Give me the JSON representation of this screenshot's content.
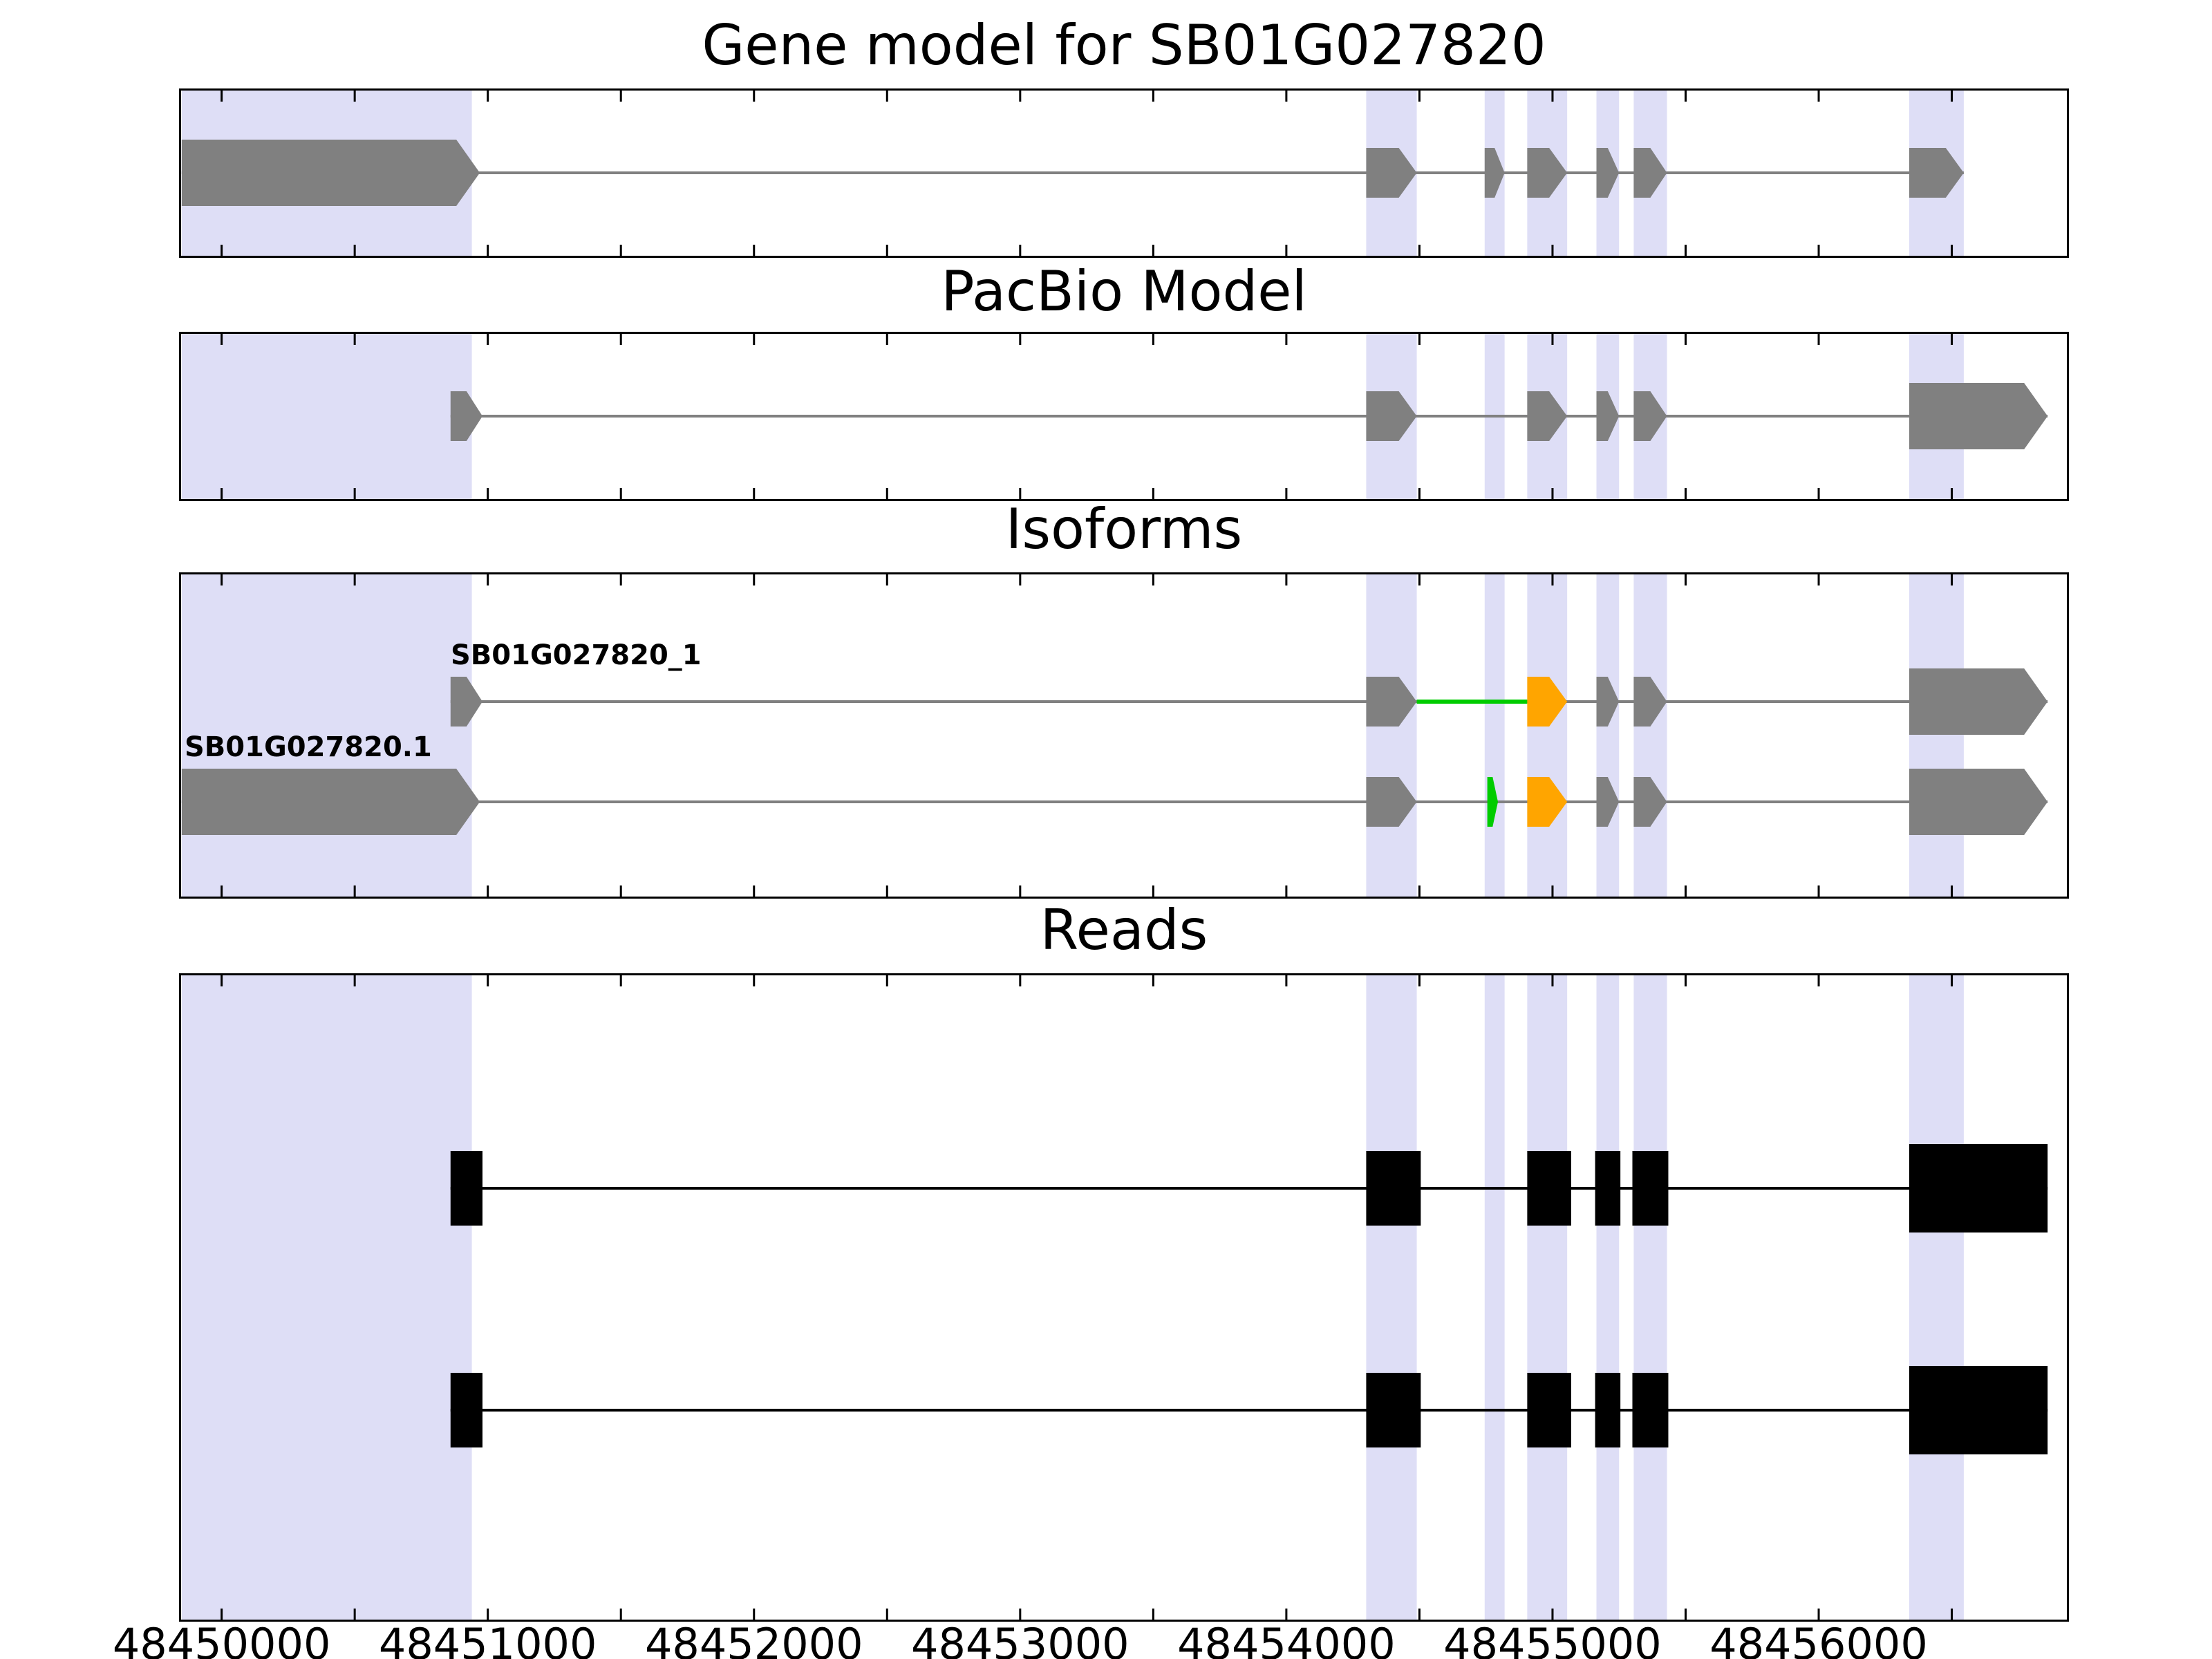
{
  "figure": {
    "background": "#ffffff",
    "axis_color": "#000000",
    "highlight_color": "#dedef6"
  },
  "chart_data": {
    "type": "genome-tracks",
    "locus": "SB01G027820",
    "x_axis": {
      "min": 48449840,
      "max": 48456940,
      "major_tick_step": 1000,
      "minor_tick_step": 500,
      "major_ticks": [
        48450000,
        48451000,
        48452000,
        48453000,
        48454000,
        48455000,
        48456000
      ],
      "tick_labels": [
        "48450000",
        "48451000",
        "48452000",
        "48453000",
        "48454000",
        "48455000",
        "48456000"
      ]
    },
    "highlight_regions": [
      {
        "start": 48449850,
        "end": 48450940
      },
      {
        "start": 48454300,
        "end": 48454490
      },
      {
        "start": 48454745,
        "end": 48454820
      },
      {
        "start": 48454905,
        "end": 48455055
      },
      {
        "start": 48455165,
        "end": 48455250
      },
      {
        "start": 48455305,
        "end": 48455430
      },
      {
        "start": 48456340,
        "end": 48456545
      }
    ],
    "panels": [
      {
        "key": "gene_model",
        "title": "Gene model for SB01G027820",
        "tracks": [
          {
            "label": "",
            "line": {
              "start": 48449850,
              "end": 48456545,
              "color": "#808080"
            },
            "extra_lines": [],
            "exons": [
              {
                "start": 48449850,
                "end": 48450970,
                "color": "#808080",
                "size": "lg",
                "tip": true
              },
              {
                "start": 48454300,
                "end": 48454490,
                "color": "#808080",
                "size": "md",
                "tip": true
              },
              {
                "start": 48454745,
                "end": 48454820,
                "color": "#808080",
                "size": "md",
                "tip": true
              },
              {
                "start": 48454905,
                "end": 48455055,
                "color": "#808080",
                "size": "md",
                "tip": true
              },
              {
                "start": 48455165,
                "end": 48455250,
                "color": "#808080",
                "size": "md",
                "tip": true
              },
              {
                "start": 48455305,
                "end": 48455430,
                "color": "#808080",
                "size": "md",
                "tip": true
              },
              {
                "start": 48456340,
                "end": 48456545,
                "color": "#808080",
                "size": "md",
                "tip": true
              }
            ]
          }
        ]
      },
      {
        "key": "pacbio_model",
        "title": "PacBio Model",
        "tracks": [
          {
            "label": "",
            "line": {
              "start": 48450860,
              "end": 48456860,
              "color": "#808080"
            },
            "extra_lines": [],
            "exons": [
              {
                "start": 48450860,
                "end": 48450980,
                "color": "#808080",
                "size": "md",
                "tip": true
              },
              {
                "start": 48454300,
                "end": 48454490,
                "color": "#808080",
                "size": "md",
                "tip": true
              },
              {
                "start": 48454905,
                "end": 48455055,
                "color": "#808080",
                "size": "md",
                "tip": true
              },
              {
                "start": 48455165,
                "end": 48455250,
                "color": "#808080",
                "size": "md",
                "tip": true
              },
              {
                "start": 48455305,
                "end": 48455430,
                "color": "#808080",
                "size": "md",
                "tip": true
              },
              {
                "start": 48456340,
                "end": 48456860,
                "color": "#808080",
                "size": "lg",
                "tip": true
              }
            ]
          }
        ]
      },
      {
        "key": "isoforms",
        "title": "Isoforms",
        "tracks": [
          {
            "label": "SB01G027820_1",
            "line": {
              "start": 48450860,
              "end": 48456860,
              "color": "#808080"
            },
            "extra_lines": [
              {
                "start": 48454490,
                "end": 48454905,
                "color": "#00cc00"
              }
            ],
            "exons": [
              {
                "start": 48450860,
                "end": 48450980,
                "color": "#808080",
                "size": "md",
                "tip": true
              },
              {
                "start": 48454300,
                "end": 48454490,
                "color": "#808080",
                "size": "md",
                "tip": true
              },
              {
                "start": 48454905,
                "end": 48455055,
                "color": "#ffa500",
                "size": "md",
                "tip": true
              },
              {
                "start": 48455165,
                "end": 48455250,
                "color": "#808080",
                "size": "md",
                "tip": true
              },
              {
                "start": 48455305,
                "end": 48455430,
                "color": "#808080",
                "size": "md",
                "tip": true
              },
              {
                "start": 48456340,
                "end": 48456860,
                "color": "#808080",
                "size": "lg",
                "tip": true
              }
            ]
          },
          {
            "label": "SB01G027820.1",
            "line": {
              "start": 48449850,
              "end": 48456860,
              "color": "#808080"
            },
            "extra_lines": [],
            "exons": [
              {
                "start": 48449850,
                "end": 48450970,
                "color": "#808080",
                "size": "lg",
                "tip": true
              },
              {
                "start": 48454300,
                "end": 48454490,
                "color": "#808080",
                "size": "md",
                "tip": true
              },
              {
                "start": 48454755,
                "end": 48454795,
                "color": "#00cc00",
                "size": "md",
                "tip": true
              },
              {
                "start": 48454905,
                "end": 48455055,
                "color": "#ffa500",
                "size": "md",
                "tip": true
              },
              {
                "start": 48455165,
                "end": 48455250,
                "color": "#808080",
                "size": "md",
                "tip": true
              },
              {
                "start": 48455305,
                "end": 48455430,
                "color": "#808080",
                "size": "md",
                "tip": true
              },
              {
                "start": 48456340,
                "end": 48456860,
                "color": "#808080",
                "size": "lg",
                "tip": true
              }
            ]
          }
        ]
      },
      {
        "key": "reads",
        "title": "Reads",
        "tracks": [
          {
            "label": "",
            "line": {
              "start": 48450860,
              "end": 48456860,
              "color": "#000000"
            },
            "extra_lines": [],
            "exons": [
              {
                "start": 48450860,
                "end": 48450980,
                "color": "#000000",
                "size": "rd",
                "tip": false
              },
              {
                "start": 48454300,
                "end": 48454505,
                "color": "#000000",
                "size": "rd",
                "tip": false
              },
              {
                "start": 48454905,
                "end": 48455070,
                "color": "#000000",
                "size": "rd",
                "tip": false
              },
              {
                "start": 48455160,
                "end": 48455255,
                "color": "#000000",
                "size": "rd",
                "tip": false
              },
              {
                "start": 48455300,
                "end": 48455435,
                "color": "#000000",
                "size": "rd",
                "tip": false
              },
              {
                "start": 48456340,
                "end": 48456860,
                "color": "#000000",
                "size": "rl",
                "tip": false
              }
            ]
          },
          {
            "label": "",
            "line": {
              "start": 48450860,
              "end": 48456860,
              "color": "#000000"
            },
            "extra_lines": [],
            "exons": [
              {
                "start": 48450860,
                "end": 48450980,
                "color": "#000000",
                "size": "rd",
                "tip": false
              },
              {
                "start": 48454300,
                "end": 48454505,
                "color": "#000000",
                "size": "rd",
                "tip": false
              },
              {
                "start": 48454905,
                "end": 48455070,
                "color": "#000000",
                "size": "rd",
                "tip": false
              },
              {
                "start": 48455160,
                "end": 48455255,
                "color": "#000000",
                "size": "rd",
                "tip": false
              },
              {
                "start": 48455300,
                "end": 48455435,
                "color": "#000000",
                "size": "rd",
                "tip": false
              },
              {
                "start": 48456340,
                "end": 48456860,
                "color": "#000000",
                "size": "rl",
                "tip": false
              }
            ]
          }
        ]
      }
    ]
  }
}
